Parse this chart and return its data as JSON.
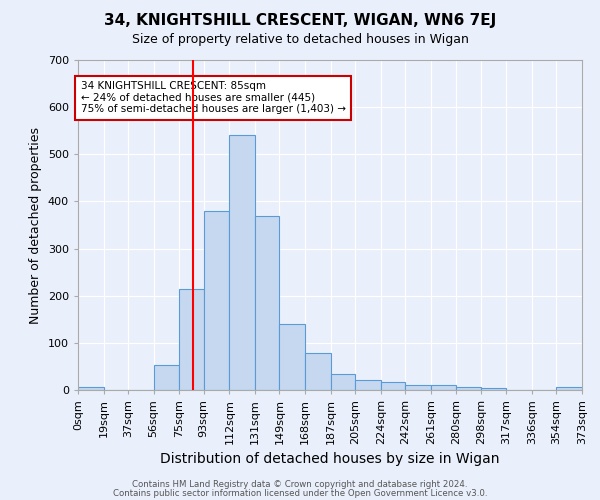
{
  "title": "34, KNIGHTSHILL CRESCENT, WIGAN, WN6 7EJ",
  "subtitle": "Size of property relative to detached houses in Wigan",
  "xlabel": "Distribution of detached houses by size in Wigan",
  "ylabel": "Number of detached properties",
  "footer_line1": "Contains HM Land Registry data © Crown copyright and database right 2024.",
  "footer_line2": "Contains public sector information licensed under the Open Government Licence v3.0.",
  "bar_edges": [
    0,
    19,
    37,
    56,
    75,
    93,
    112,
    131,
    149,
    168,
    187,
    205,
    224,
    242,
    261,
    280,
    298,
    317,
    336,
    354,
    373
  ],
  "bar_heights": [
    7,
    0,
    0,
    52,
    215,
    380,
    540,
    370,
    140,
    78,
    35,
    22,
    18,
    11,
    11,
    7,
    5,
    1,
    0,
    7
  ],
  "bar_color": "#c5d8f0",
  "bar_edge_color": "#5b9bd5",
  "x_tick_labels": [
    "0sqm",
    "19sqm",
    "37sqm",
    "56sqm",
    "75sqm",
    "93sqm",
    "112sqm",
    "131sqm",
    "149sqm",
    "168sqm",
    "187sqm",
    "205sqm",
    "224sqm",
    "242sqm",
    "261sqm",
    "280sqm",
    "298sqm",
    "317sqm",
    "336sqm",
    "354sqm",
    "373sqm"
  ],
  "ylim": [
    0,
    700
  ],
  "yticks": [
    0,
    100,
    200,
    300,
    400,
    500,
    600,
    700
  ],
  "red_line_x": 85,
  "annotation_text": "34 KNIGHTSHILL CRESCENT: 85sqm\n← 24% of detached houses are smaller (445)\n75% of semi-detached houses are larger (1,403) →",
  "annotation_box_color": "#ffffff",
  "annotation_box_edge_color": "#cc0000",
  "bg_color": "#eaf0fb",
  "grid_color": "#ffffff"
}
